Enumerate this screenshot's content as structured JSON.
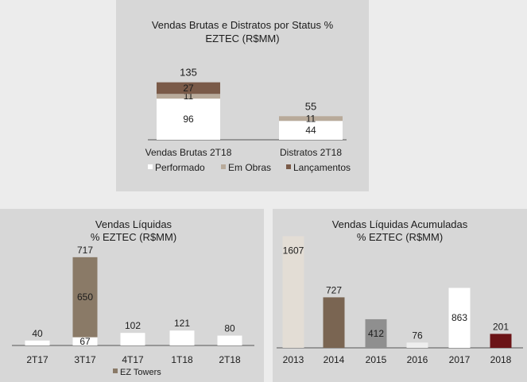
{
  "colors": {
    "performado": "#ffffff",
    "em_obras": "#b8aa9a",
    "lancamentos": "#6b1417",
    "ez_towers": "#8a7a67",
    "axis": "#555555"
  },
  "chart_data": [
    {
      "type": "bar",
      "stacked": true,
      "title": "Vendas Brutas e Distratos por Status %",
      "subtitle": "EZTEC (R$MM)",
      "categories": [
        "Vendas Brutas 2T18",
        "Distratos 2T18"
      ],
      "series": [
        {
          "name": "Performado",
          "color": "#ffffff",
          "values": [
            96,
            44
          ]
        },
        {
          "name": "Em Obras",
          "color": "#b8aa9a",
          "values": [
            11,
            11
          ]
        },
        {
          "name": "Lançamentos",
          "color": "#7a5a48",
          "values": [
            27,
            0
          ]
        }
      ],
      "segment_labels": [
        [
          "96",
          "11",
          "27"
        ],
        [
          "44",
          "11",
          ""
        ]
      ],
      "totals": [
        "135",
        "55"
      ],
      "legend_placement": "bottom"
    },
    {
      "type": "bar",
      "stacked": true,
      "title": "Vendas Líquidas",
      "subtitle": "% EZTEC (R$MM)",
      "categories": [
        "2T17",
        "3T17",
        "4T17",
        "1T18",
        "2T18"
      ],
      "series": [
        {
          "name": "",
          "color": "#ffffff",
          "values": [
            40,
            67,
            102,
            121,
            80
          ]
        },
        {
          "name": "EZ Towers",
          "color": "#8a7a67",
          "values": [
            0,
            650,
            0,
            0,
            0
          ]
        }
      ],
      "segment_labels": [
        [
          "",
          "67",
          "",
          "",
          ""
        ],
        [
          "",
          "650",
          "",
          "",
          ""
        ]
      ],
      "totals": [
        "40",
        "717",
        "102",
        "121",
        "80"
      ],
      "legend_placement": "bottom"
    },
    {
      "type": "bar",
      "title": "Vendas Líquidas Acumuladas",
      "subtitle": "% EZTEC (R$MM)",
      "categories": [
        "2013",
        "2014",
        "2015",
        "2016",
        "2017",
        "2018"
      ],
      "values": [
        1607,
        727,
        412,
        76,
        863,
        201
      ],
      "value_labels": [
        "1607",
        "727",
        "412",
        "76",
        "863",
        "201"
      ],
      "colors": [
        "#e3ddd5",
        "#7a6552",
        "#8f8f8f",
        "#eeeeee",
        "#ffffff",
        "#6b1417"
      ]
    }
  ]
}
